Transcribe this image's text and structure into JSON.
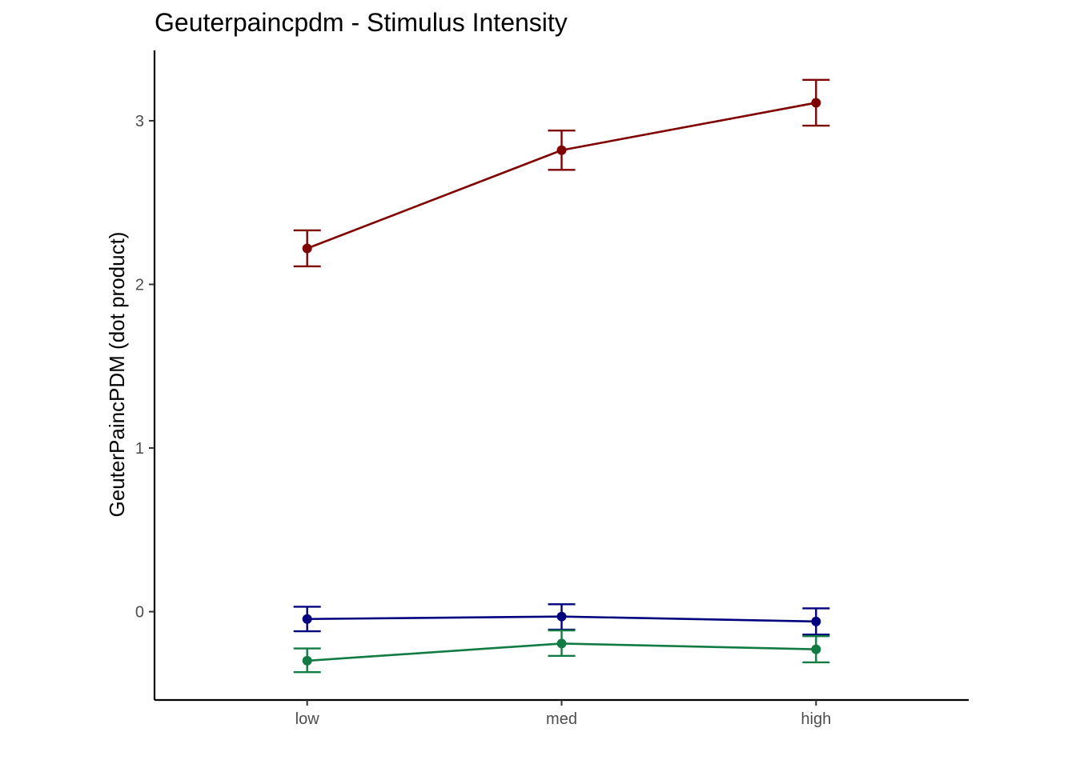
{
  "chart_data": {
    "type": "line",
    "title": "Geuterpaincpdm - Stimulus Intensity",
    "xlabel": "",
    "ylabel": "GeuterPaincPDM  (dot product)",
    "categories": [
      "low",
      "med",
      "high"
    ],
    "y_ticks": [
      0,
      1,
      2,
      3
    ],
    "ylim": [
      -0.54,
      3.43
    ],
    "grid": false,
    "legend": "none",
    "series": [
      {
        "color": "#7f0000",
        "values": [
          2.22,
          2.82,
          3.11
        ],
        "lower": [
          2.11,
          2.7,
          2.97
        ],
        "upper": [
          2.33,
          2.94,
          3.25
        ]
      },
      {
        "color": "#00007f",
        "values": [
          -0.045,
          -0.03,
          -0.06
        ],
        "lower": [
          -0.12,
          -0.11,
          -0.14
        ],
        "upper": [
          0.03,
          0.045,
          0.02
        ]
      },
      {
        "color": "#127b43",
        "values": [
          -0.3,
          -0.195,
          -0.23
        ],
        "lower": [
          -0.37,
          -0.27,
          -0.31
        ],
        "upper": [
          -0.225,
          -0.115,
          -0.15
        ]
      }
    ]
  }
}
